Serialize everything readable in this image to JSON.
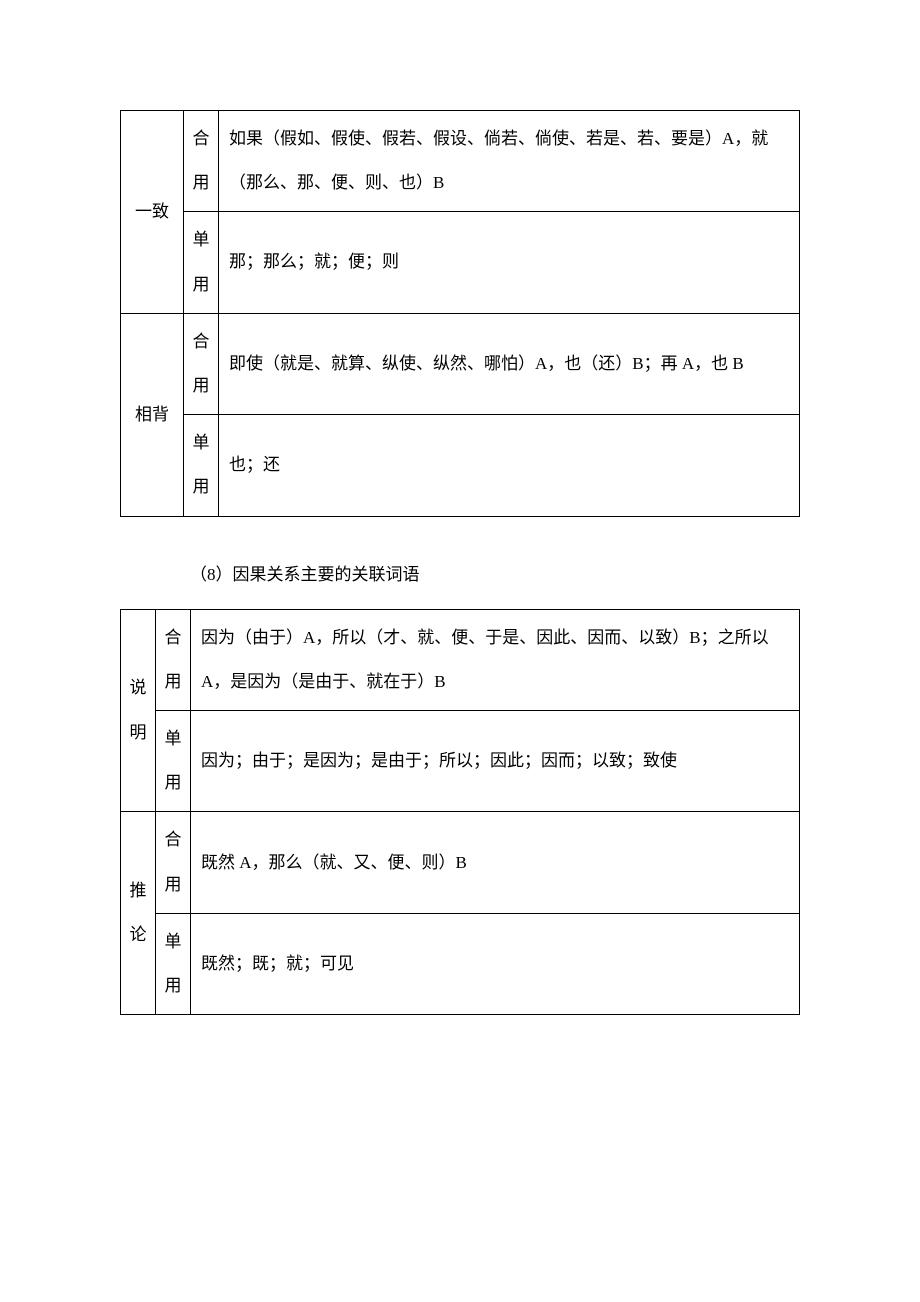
{
  "table1": {
    "row1": {
      "cat": "一致",
      "type_a": "合",
      "type_b": "用",
      "content": "如果（假如、假使、假若、假设、倘若、倘使、若是、若、要是）A，就（那么、那、便、则、也）B"
    },
    "row2": {
      "type_a": "单",
      "type_b": "用",
      "content": "那；那么；就；便；则"
    },
    "row3": {
      "cat": "相背",
      "type_a": "合",
      "type_b": "用",
      "content": "即使（就是、就算、纵使、纵然、哪怕）A，也（还）B；再 A，也 B"
    },
    "row4": {
      "type_a": "单",
      "type_b": "用",
      "content": "也；还"
    }
  },
  "section_title": "（8）因果关系主要的关联词语",
  "table2": {
    "row1": {
      "cat_a": "说",
      "cat_b": "明",
      "type_a": "合",
      "type_b": "用",
      "content": "因为（由于）A，所以（才、就、便、于是、因此、因而、以致）B；之所以 A，是因为（是由于、就在于）B"
    },
    "row2": {
      "type_a": "单",
      "type_b": "用",
      "content": "因为；由于；是因为；是由于；所以；因此；因而；以致；致使"
    },
    "row3": {
      "cat_a": "推",
      "cat_b": "论",
      "type_a": "合",
      "type_b": "用",
      "content": "既然 A，那么（就、又、便、则）B"
    },
    "row4": {
      "type_a": "单",
      "type_b": "用",
      "content": "既然；既；就；可见"
    }
  }
}
